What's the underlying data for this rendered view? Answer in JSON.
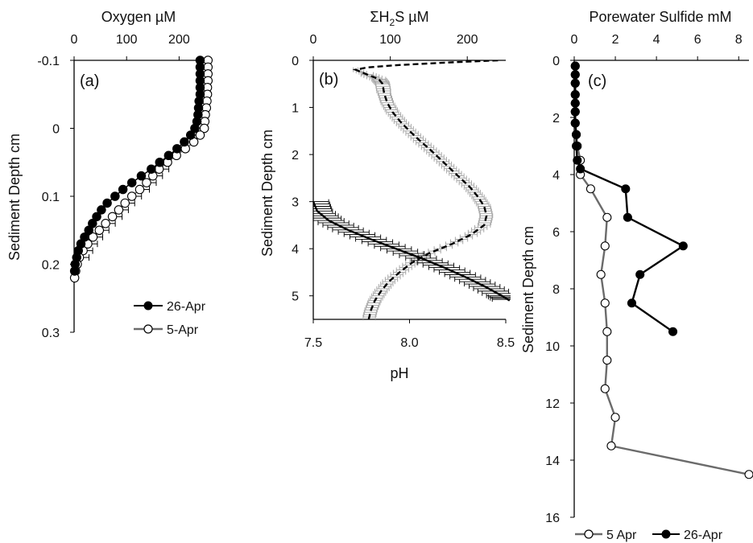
{
  "colors": {
    "black": "#000000",
    "gray": "#6b6b6b",
    "lightgray": "#a8a8a8",
    "white": "#ffffff"
  },
  "chart_data": [
    {
      "panel_label": "(a)",
      "type": "line",
      "xlabel": "Oxygen µM",
      "ylabel": "Sediment Depth cm",
      "xlim": [
        0,
        250
      ],
      "ylim": [
        -0.1,
        0.3
      ],
      "x_ticks": [
        "0",
        "100",
        "200"
      ],
      "x_tick_values": [
        0,
        100,
        200
      ],
      "y_ticks": [
        "-0.1",
        "0",
        "0.1",
        "0.2",
        "0.3"
      ],
      "y_tick_values": [
        -0.1,
        0,
        0.1,
        0.2,
        0.3
      ],
      "y_inverted": true,
      "legend_position": "bottom-right",
      "series": [
        {
          "name": "26-Apr",
          "marker": "filled-circle",
          "color": "#000000",
          "depth": [
            -0.1,
            -0.09,
            -0.08,
            -0.07,
            -0.06,
            -0.05,
            -0.04,
            -0.03,
            -0.02,
            -0.01,
            0,
            0.01,
            0.02,
            0.03,
            0.04,
            0.05,
            0.06,
            0.07,
            0.08,
            0.09,
            0.1,
            0.11,
            0.12,
            0.13,
            0.14,
            0.15,
            0.16,
            0.17,
            0.18,
            0.19,
            0.2,
            0.21
          ],
          "oxygen": [
            240,
            240,
            240,
            240,
            240,
            240,
            238,
            237,
            236,
            234,
            230,
            222,
            210,
            196,
            180,
            163,
            147,
            128,
            110,
            93,
            78,
            63,
            52,
            43,
            35,
            28,
            20,
            13,
            8,
            5,
            2,
            1
          ]
        },
        {
          "name": "5-Apr",
          "marker": "open-circle",
          "color": "#6b6b6b",
          "depth": [
            -0.1,
            -0.09,
            -0.08,
            -0.07,
            -0.06,
            -0.05,
            -0.04,
            -0.03,
            -0.02,
            -0.01,
            0,
            0.01,
            0.02,
            0.03,
            0.04,
            0.05,
            0.06,
            0.07,
            0.08,
            0.09,
            0.1,
            0.11,
            0.12,
            0.13,
            0.14,
            0.15,
            0.16,
            0.17,
            0.18,
            0.19,
            0.2,
            0.21,
            0.22
          ],
          "oxygen": [
            255,
            255,
            255,
            255,
            254,
            254,
            253,
            252,
            250,
            249,
            248,
            240,
            228,
            212,
            195,
            178,
            162,
            150,
            138,
            125,
            110,
            97,
            85,
            73,
            60,
            48,
            36,
            26,
            17,
            10,
            6,
            3,
            1
          ]
        }
      ]
    },
    {
      "panel_label": "(b)",
      "type": "line",
      "xlabel": "ΣH2S µM",
      "xlabel_prefix": "ΣH",
      "xlabel_sub": "2",
      "xlabel_suffix": "S µM",
      "xlabel_bottom": "pH",
      "ylabel": "Sediment Depth cm",
      "xlim_top": [
        0,
        250
      ],
      "xlim_bottom": [
        7.5,
        8.5
      ],
      "ylim": [
        0,
        5.5
      ],
      "x_ticks_top": [
        "0",
        "100",
        "200"
      ],
      "x_tick_values_top": [
        0,
        100,
        200
      ],
      "x_ticks_bottom": [
        "7.5",
        "8.0",
        "8.5"
      ],
      "x_tick_values_bottom": [
        7.5,
        8.0,
        8.5
      ],
      "y_ticks": [
        "0",
        "1",
        "2",
        "3",
        "4",
        "5"
      ],
      "y_tick_values": [
        0,
        1,
        2,
        3,
        4,
        5
      ],
      "y_inverted": true,
      "series": [
        {
          "name": "",
          "quantity": "ΣH2S",
          "style": "dashed",
          "color": "#000000",
          "error_color": "#a8a8a8",
          "depth": [
            0.0,
            0.05,
            0.1,
            0.15,
            0.2,
            0.3,
            0.4,
            0.5,
            0.7,
            0.9,
            1.1,
            1.3,
            1.5,
            1.7,
            1.9,
            2.1,
            2.3,
            2.5,
            2.7,
            2.9,
            3.1,
            3.3,
            3.5,
            3.7,
            3.9,
            4.1,
            4.3,
            4.5,
            4.7,
            4.9,
            5.1,
            5.3,
            5.5
          ],
          "value": [
            240,
            170,
            110,
            70,
            55,
            70,
            85,
            90,
            92,
            96,
            103,
            113,
            125,
            138,
            152,
            165,
            178,
            191,
            204,
            214,
            222,
            225,
            222,
            205,
            180,
            150,
            128,
            112,
            98,
            88,
            80,
            75,
            72
          ],
          "error": [
            0,
            0,
            0,
            0,
            3,
            8,
            9,
            9,
            8,
            8,
            8,
            8,
            8,
            8,
            8,
            8,
            8,
            8,
            8,
            8,
            8,
            8,
            8,
            8,
            8,
            8,
            8,
            8,
            8,
            8,
            8,
            8,
            8
          ]
        },
        {
          "name": "",
          "quantity": "pH",
          "style": "solid",
          "color": "#000000",
          "error_color": "#000000",
          "depth": [
            3.0,
            3.2,
            3.4,
            3.6,
            3.8,
            4.0,
            4.2,
            4.4,
            4.6,
            4.8,
            5.0,
            5.1
          ],
          "value": [
            7.5,
            7.52,
            7.58,
            7.68,
            7.8,
            7.93,
            8.06,
            8.18,
            8.29,
            8.39,
            8.48,
            8.52
          ],
          "error": [
            0.08,
            0.08,
            0.08,
            0.08,
            0.08,
            0.08,
            0.08,
            0.08,
            0.08,
            0.08,
            0.08,
            0.08
          ]
        }
      ]
    },
    {
      "panel_label": "(c)",
      "type": "line",
      "xlabel": "Porewater Sulfide mM",
      "ylabel": "Sediment Depth cm",
      "xlim": [
        0,
        8.5
      ],
      "ylim": [
        0,
        16
      ],
      "x_ticks": [
        "0",
        "2",
        "4",
        "6",
        "8"
      ],
      "x_tick_values": [
        0,
        2,
        4,
        6,
        8
      ],
      "y_ticks": [
        "0",
        "2",
        "4",
        "6",
        "8",
        "10",
        "12",
        "14",
        "16"
      ],
      "y_tick_values": [
        0,
        2,
        4,
        6,
        8,
        10,
        12,
        14,
        16
      ],
      "y_inverted": true,
      "legend_position": "bottom",
      "series": [
        {
          "name": "5 Apr",
          "marker": "open-circle",
          "color": "#6b6b6b",
          "depth": [
            0.2,
            0.5,
            0.8,
            1.2,
            1.5,
            1.8,
            2.2,
            2.6,
            3.0,
            3.5,
            4.0,
            4.5,
            5.5,
            6.5,
            7.5,
            8.5,
            9.5,
            10.5,
            11.5,
            12.5,
            13.5,
            14.5
          ],
          "sulfide": [
            0.05,
            0.05,
            0.05,
            0.05,
            0.05,
            0.05,
            0.05,
            0.1,
            0.15,
            0.3,
            0.3,
            0.8,
            1.6,
            1.5,
            1.3,
            1.5,
            1.6,
            1.6,
            1.5,
            2.0,
            1.8,
            8.5
          ]
        },
        {
          "name": "26-Apr",
          "marker": "filled-circle",
          "color": "#000000",
          "depth": [
            0.2,
            0.5,
            0.8,
            1.2,
            1.5,
            1.8,
            2.2,
            2.6,
            3.0,
            3.5,
            3.8,
            4.5,
            5.5,
            6.5,
            7.5,
            8.5,
            9.5
          ],
          "sulfide": [
            0.05,
            0.05,
            0.05,
            0.05,
            0.05,
            0.05,
            0.05,
            0.1,
            0.1,
            0.15,
            0.3,
            2.5,
            2.6,
            5.3,
            3.2,
            2.8,
            4.8
          ]
        }
      ]
    }
  ]
}
